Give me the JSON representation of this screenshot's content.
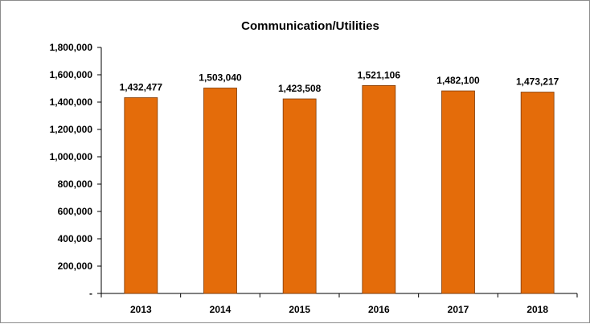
{
  "chart_data": {
    "type": "bar",
    "title": "Communication/Utilities",
    "xlabel": "",
    "ylabel": "",
    "categories": [
      "2013",
      "2014",
      "2015",
      "2016",
      "2017",
      "2018"
    ],
    "values": [
      1432477,
      1503040,
      1423508,
      1521106,
      1482100,
      1473217
    ],
    "data_labels": [
      "1,432,477",
      "1,503,040",
      "1,423,508",
      "1,521,106",
      "1,482,100",
      "1,473,217"
    ],
    "ylim": [
      0,
      1800000
    ],
    "y_ticks": [
      0,
      200000,
      400000,
      600000,
      800000,
      1000000,
      1200000,
      1400000,
      1600000,
      1800000
    ],
    "y_tick_labels": [
      "-",
      "200,000",
      "400,000",
      "600,000",
      "800,000",
      "1,000,000",
      "1,200,000",
      "1,400,000",
      "1,600,000",
      "1,800,000"
    ],
    "grid": false,
    "legend": "none",
    "colors": {
      "bar_fill": "#E46C0A",
      "bar_stroke": "#7F3A05",
      "axis": "#000000"
    }
  }
}
